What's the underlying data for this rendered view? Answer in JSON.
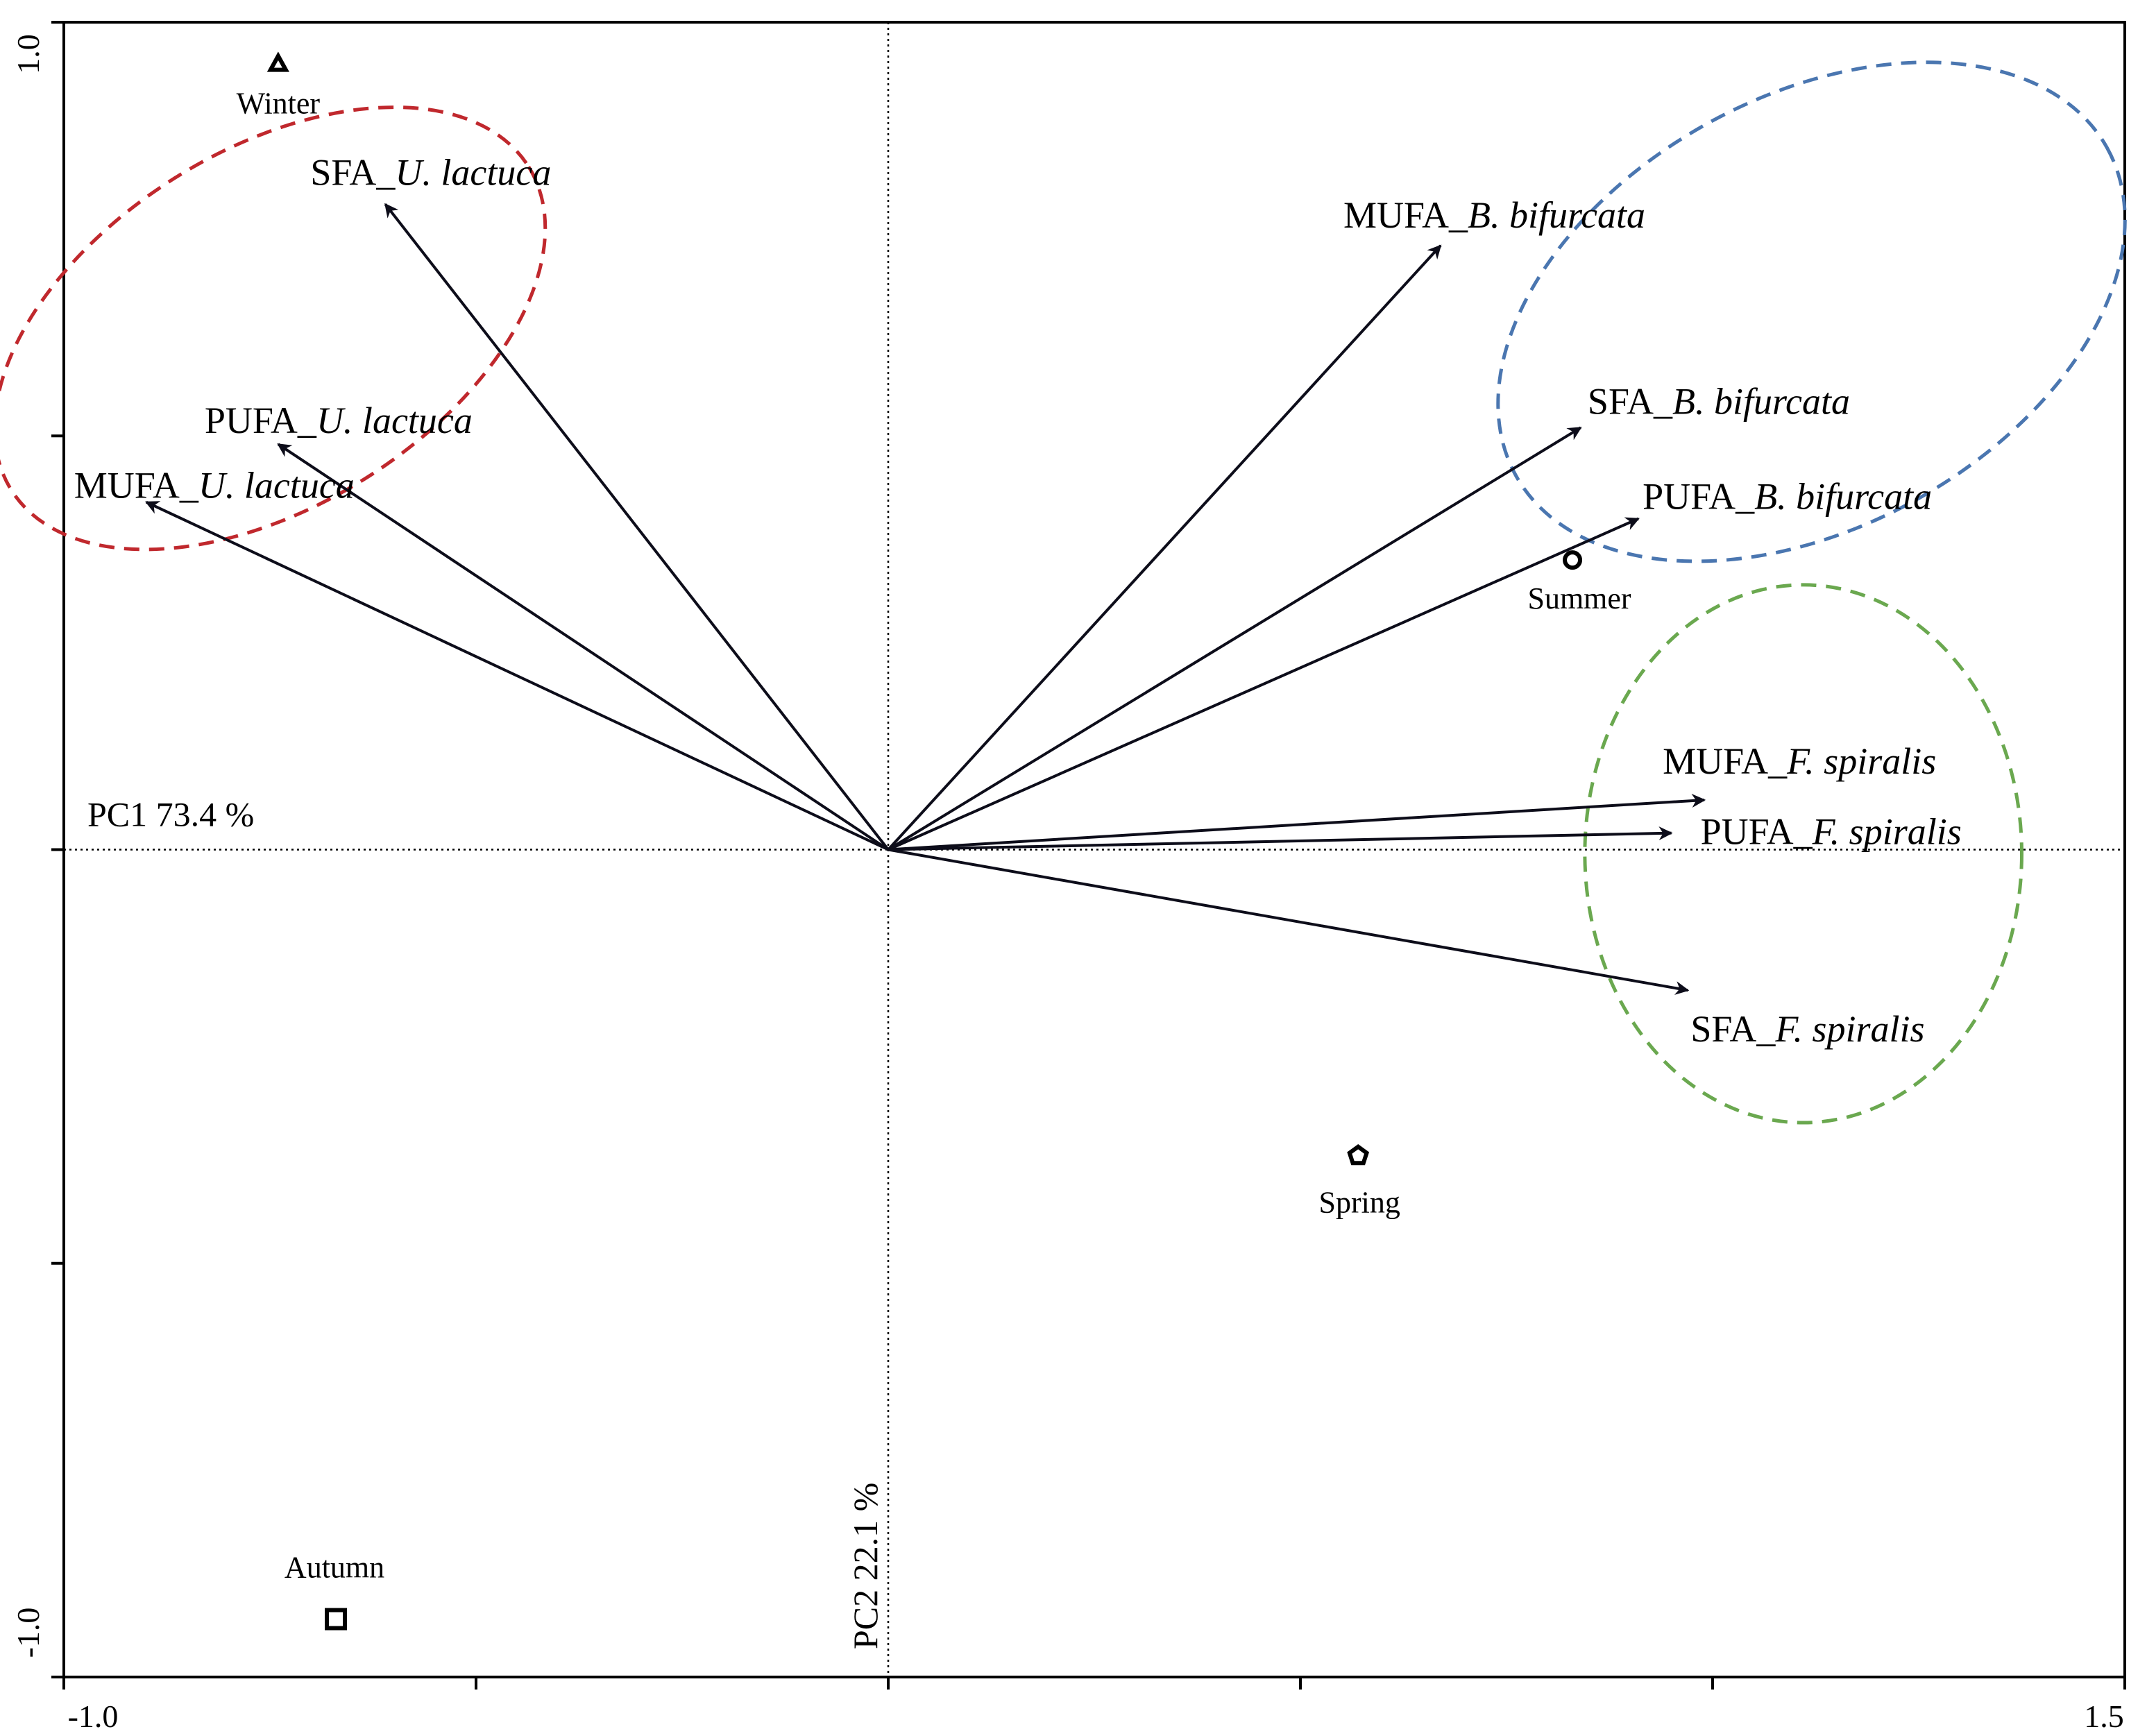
{
  "chart_data": {
    "type": "scatter",
    "subtype": "PCA biplot",
    "xaxis": {
      "range": [
        -1.0,
        1.5
      ],
      "tick_values": [
        -1.0,
        -0.5,
        0.0,
        0.5,
        1.0,
        1.5
      ],
      "tick_labels": [
        "-1.0",
        "1.5"
      ],
      "title": "PC1 73.4 %"
    },
    "yaxis": {
      "range": [
        -1.0,
        1.0
      ],
      "tick_values": [
        -1.0,
        -0.5,
        0.0,
        0.5,
        1.0
      ],
      "tick_labels": [
        "-1.0",
        "1.0"
      ],
      "title": "PC2 22.1 %"
    },
    "grid": false,
    "vectors": [
      {
        "prefix": "SFA_",
        "species": "U. lactuca",
        "x": -0.61,
        "y": 0.78,
        "group": "ulva"
      },
      {
        "prefix": "PUFA_",
        "species": "U. lactuca",
        "x": -0.74,
        "y": 0.49,
        "group": "ulva"
      },
      {
        "prefix": "MUFA_",
        "species": "U. lactuca",
        "x": -0.9,
        "y": 0.42,
        "group": "ulva"
      },
      {
        "prefix": "MUFA_",
        "species": "B. bifurcata",
        "x": 0.67,
        "y": 0.73,
        "group": "bifurcaria"
      },
      {
        "prefix": "SFA_",
        "species": "B. bifurcata",
        "x": 0.84,
        "y": 0.51,
        "group": "bifurcaria"
      },
      {
        "prefix": "PUFA_",
        "species": "B. bifurcata",
        "x": 0.91,
        "y": 0.4,
        "group": "bifurcaria"
      },
      {
        "prefix": "MUFA_",
        "species": "F. spiralis",
        "x": 0.99,
        "y": 0.06,
        "group": "fucus"
      },
      {
        "prefix": "PUFA_",
        "species": "F. spiralis",
        "x": 0.95,
        "y": 0.02,
        "group": "fucus"
      },
      {
        "prefix": "SFA_",
        "species": "F. spiralis",
        "x": 0.97,
        "y": -0.17,
        "group": "fucus"
      }
    ],
    "sites": [
      {
        "label": "Winter",
        "x": -0.74,
        "y": 0.95,
        "marker": "triangle"
      },
      {
        "label": "Summer",
        "x": 0.83,
        "y": 0.35,
        "marker": "circle"
      },
      {
        "label": "Spring",
        "x": 0.57,
        "y": -0.37,
        "marker": "pentagon"
      },
      {
        "label": "Autumn",
        "x": -0.67,
        "y": -0.93,
        "marker": "square"
      }
    ],
    "groups": [
      {
        "id": "ulva",
        "color": "#c0282d",
        "cx": -0.75,
        "cy": 0.63,
        "rx": 0.37,
        "ry": 0.215,
        "rotation_deg": -32
      },
      {
        "id": "bifurcaria",
        "color": "#4a76b0",
        "cx": 1.12,
        "cy": 0.65,
        "rx": 0.41,
        "ry": 0.26,
        "rotation_deg": -29
      },
      {
        "id": "fucus",
        "color": "#6aa84f",
        "cx": 1.11,
        "cy": -0.005,
        "rx": 0.265,
        "ry": 0.325,
        "rotation_deg": 0
      }
    ]
  }
}
